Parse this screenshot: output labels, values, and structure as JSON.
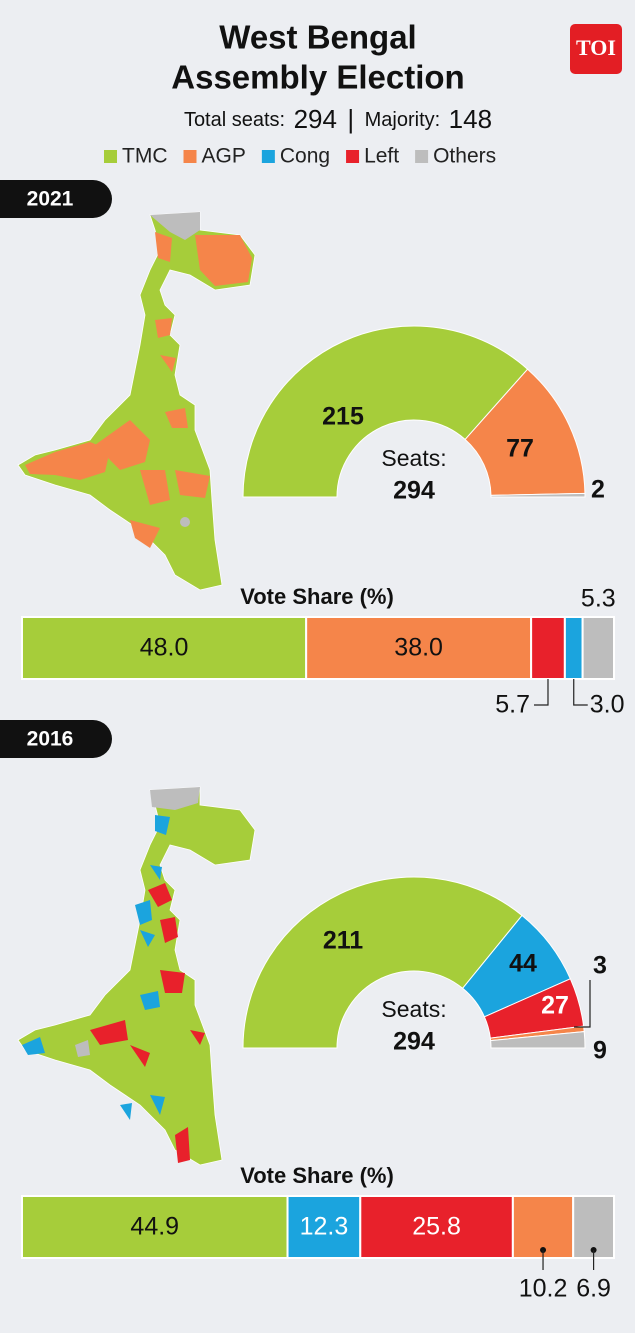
{
  "header": {
    "title_lines": [
      "West Bengal",
      "Assembly Election"
    ],
    "seats_label": "Total seats:",
    "seats": 294,
    "separator": "|",
    "majority_label": "Majority:",
    "majority": 148,
    "logo": "TOI"
  },
  "legend": [
    {
      "name": "TMC",
      "color": "#a6cd3a"
    },
    {
      "name": "AGP",
      "color": "#f5854a"
    },
    {
      "name": "Cong",
      "color": "#1ba4de"
    },
    {
      "name": "Left",
      "color": "#e8212b"
    },
    {
      "name": "Others",
      "color": "#bdbdbd"
    }
  ],
  "chart_data": [
    {
      "type": "half-donut",
      "year": "2021",
      "center_label": "Seats:",
      "total": 294,
      "categories": [
        "TMC",
        "AGP",
        "Others"
      ],
      "values": [
        215,
        77,
        2
      ],
      "colors": [
        "#a6cd3a",
        "#f5854a",
        "#bdbdbd"
      ]
    },
    {
      "type": "stacked-bar",
      "title": "Vote Share (%)",
      "categories": [
        "TMC",
        "AGP",
        "Left",
        "Cong",
        "Others"
      ],
      "values": [
        48,
        38,
        5.7,
        3,
        5.3
      ],
      "value_labels": [
        "48.0",
        "38.0",
        "5.7",
        "3.0",
        "5.3"
      ],
      "colors": [
        "#a6cd3a",
        "#f5854a",
        "#e8212b",
        "#1ba4de",
        "#bdbdbd"
      ]
    },
    {
      "type": "half-donut",
      "year": "2016",
      "center_label": "Seats:",
      "total": 294,
      "categories": [
        "TMC",
        "Cong",
        "Left",
        "AGP",
        "Others"
      ],
      "values": [
        211,
        44,
        27,
        3,
        9
      ],
      "colors": [
        "#a6cd3a",
        "#1ba4de",
        "#e8212b",
        "#f5854a",
        "#bdbdbd"
      ]
    },
    {
      "type": "stacked-bar",
      "title": "Vote Share (%)",
      "categories": [
        "TMC",
        "Cong",
        "Left",
        "AGP",
        "Others"
      ],
      "values": [
        44.9,
        12.3,
        25.8,
        10.2,
        6.9
      ],
      "colors": [
        "#a6cd3a",
        "#1ba4de",
        "#e8212b",
        "#f5854a",
        "#bdbdbd"
      ]
    }
  ]
}
